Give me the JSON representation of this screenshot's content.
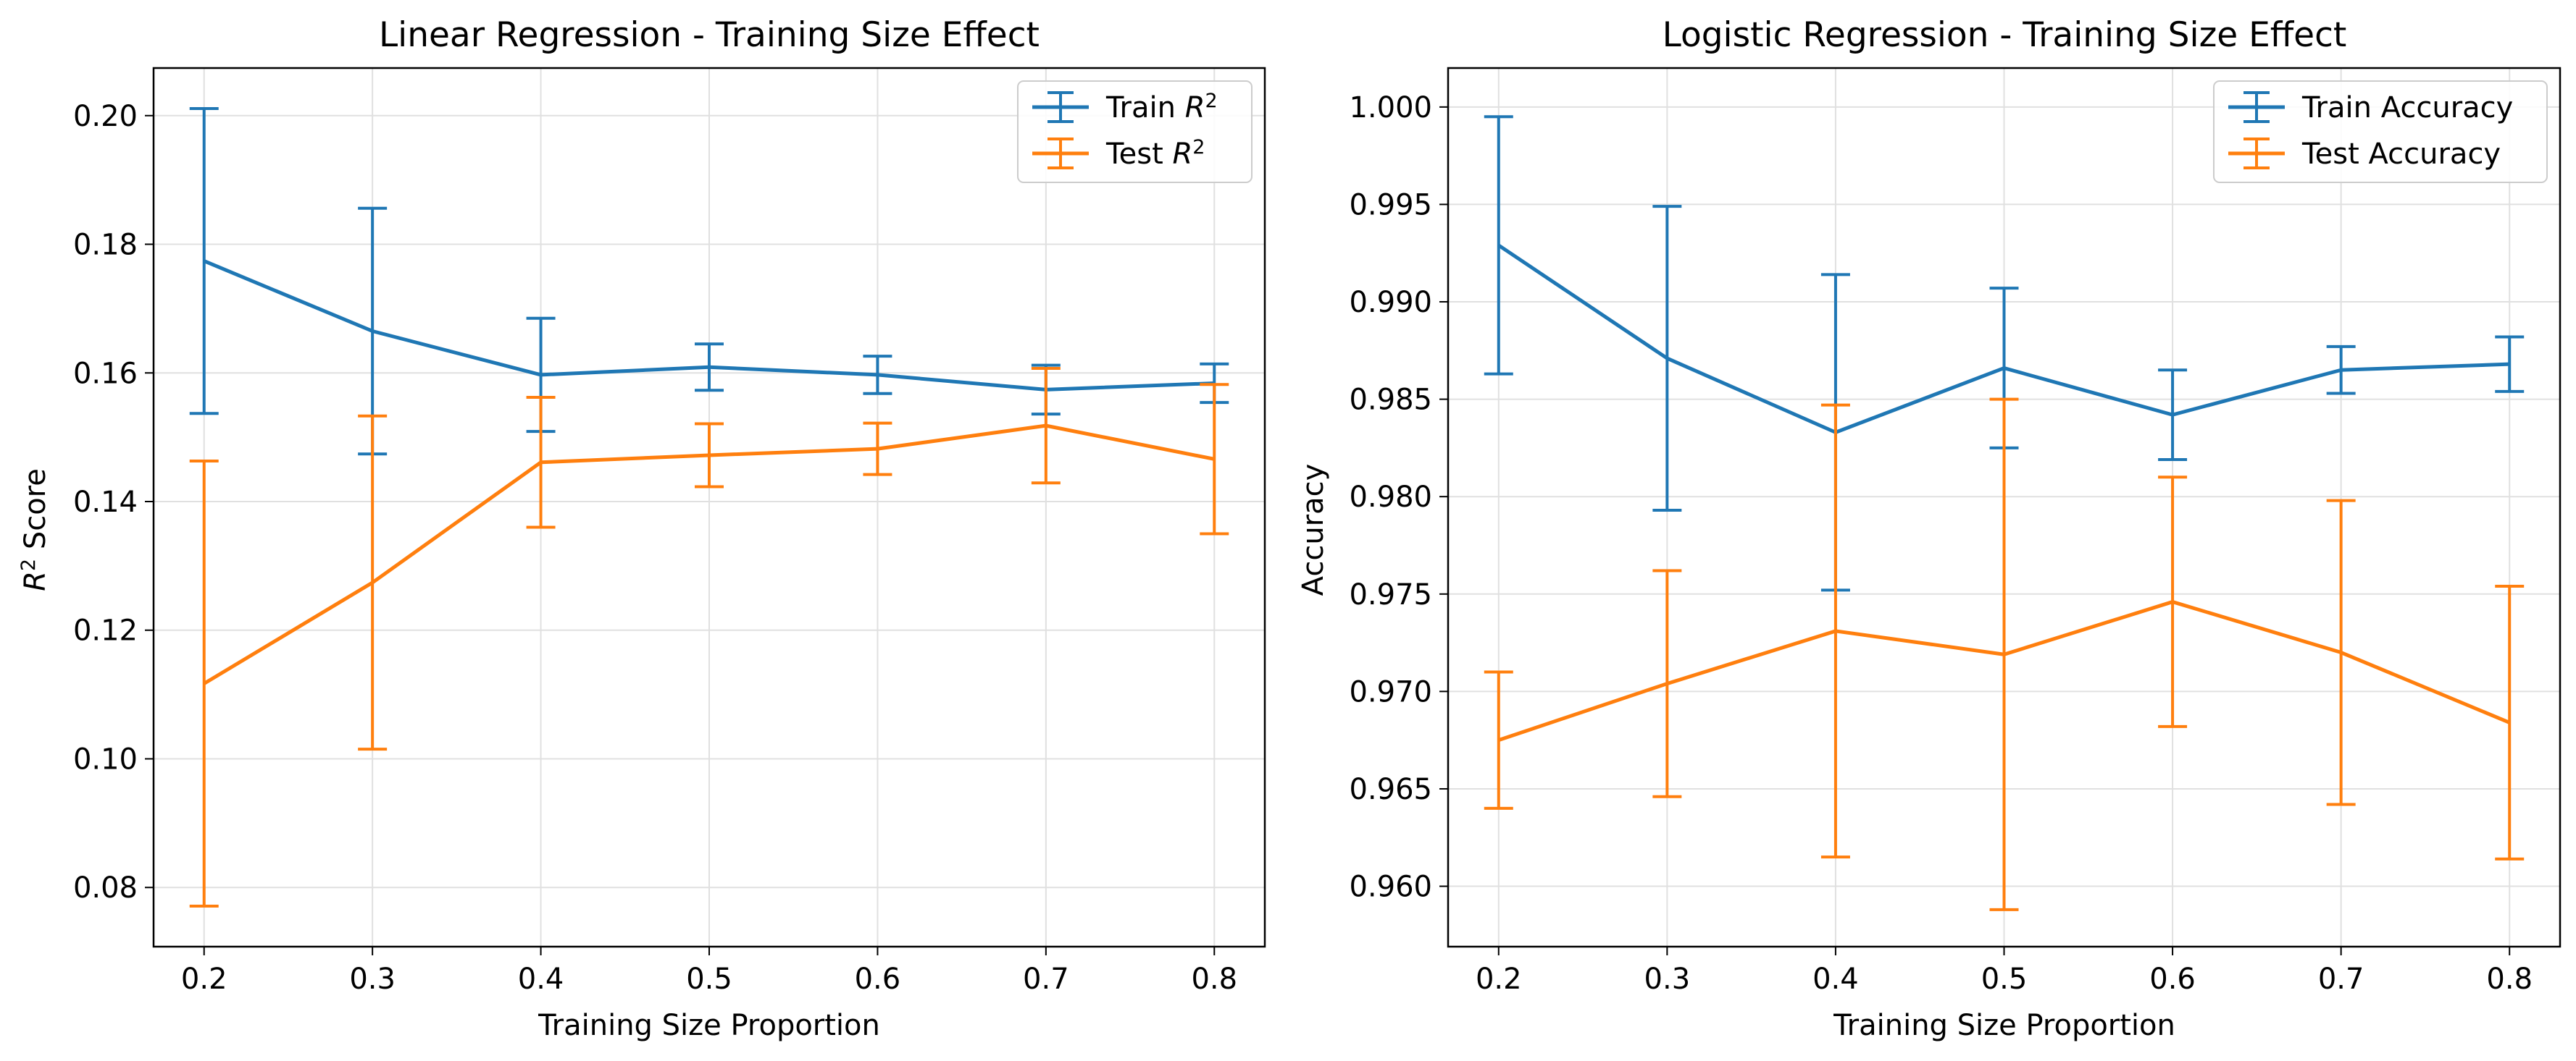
{
  "colors": {
    "train": "#1f77b4",
    "test": "#ff7f0e",
    "grid": "#e0e0e0",
    "frame": "#000000"
  },
  "chart_data": [
    {
      "type": "line",
      "title": "Linear Regression - Training Size Effect",
      "xlabel": "Training Size Proportion",
      "ylabel": "R² Score",
      "x": [
        0.2,
        0.3,
        0.4,
        0.5,
        0.6,
        0.7,
        0.8
      ],
      "xlim": [
        0.17,
        0.83
      ],
      "ylim": [
        0.0708,
        0.2074
      ],
      "xticks": [
        0.2,
        0.3,
        0.4,
        0.5,
        0.6,
        0.7,
        0.8
      ],
      "xtick_labels": [
        "0.2",
        "0.3",
        "0.4",
        "0.5",
        "0.6",
        "0.7",
        "0.8"
      ],
      "yticks": [
        0.08,
        0.1,
        0.12,
        0.14,
        0.16,
        0.18,
        0.2
      ],
      "ytick_labels": [
        "0.08",
        "0.10",
        "0.12",
        "0.14",
        "0.16",
        "0.18",
        "0.20"
      ],
      "grid": true,
      "legend_position": "top-right",
      "series": [
        {
          "name": "Train R²",
          "color_key": "train",
          "values": [
            0.1774,
            0.1665,
            0.1597,
            0.1609,
            0.1597,
            0.1574,
            0.1584
          ],
          "errors": [
            0.0237,
            0.0191,
            0.0088,
            0.0036,
            0.0029,
            0.0038,
            0.003
          ]
        },
        {
          "name": "Test R²",
          "color_key": "test",
          "values": [
            0.1117,
            0.1274,
            0.1461,
            0.1472,
            0.1482,
            0.1518,
            0.1466
          ],
          "errors": [
            0.0346,
            0.0259,
            0.0101,
            0.0049,
            0.004,
            0.0089,
            0.0116
          ]
        }
      ]
    },
    {
      "type": "line",
      "title": "Logistic Regression - Training Size Effect",
      "xlabel": "Training Size Proportion",
      "ylabel": "Accuracy",
      "x": [
        0.2,
        0.3,
        0.4,
        0.5,
        0.6,
        0.7,
        0.8
      ],
      "xlim": [
        0.17,
        0.83
      ],
      "ylim": [
        0.9569,
        1.002
      ],
      "xticks": [
        0.2,
        0.3,
        0.4,
        0.5,
        0.6,
        0.7,
        0.8
      ],
      "xtick_labels": [
        "0.2",
        "0.3",
        "0.4",
        "0.5",
        "0.6",
        "0.7",
        "0.8"
      ],
      "yticks": [
        0.96,
        0.965,
        0.97,
        0.975,
        0.98,
        0.985,
        0.99,
        0.995,
        1.0
      ],
      "ytick_labels": [
        "0.960",
        "0.965",
        "0.970",
        "0.975",
        "0.980",
        "0.985",
        "0.990",
        "0.995",
        "1.000"
      ],
      "grid": true,
      "legend_position": "top-right",
      "series": [
        {
          "name": "Train Accuracy",
          "color_key": "train",
          "values": [
            0.9929,
            0.9871,
            0.9833,
            0.9866,
            0.9842,
            0.9865,
            0.9868
          ],
          "errors": [
            0.0066,
            0.0078,
            0.0081,
            0.0041,
            0.0023,
            0.0012,
            0.0014
          ]
        },
        {
          "name": "Test Accuracy",
          "color_key": "test",
          "values": [
            0.9675,
            0.9704,
            0.9731,
            0.9719,
            0.9746,
            0.972,
            0.9684
          ],
          "errors": [
            0.0035,
            0.0058,
            0.0116,
            0.0131,
            0.0064,
            0.0078,
            0.007
          ]
        }
      ]
    }
  ]
}
